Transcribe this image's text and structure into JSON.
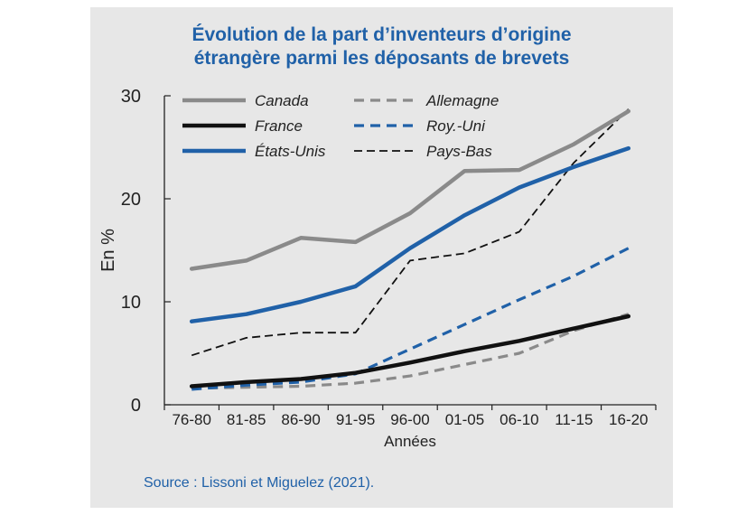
{
  "chart_data": {
    "type": "line",
    "title_lines": [
      "Évolution de la part d’inventeurs d’origine",
      "étrangère parmi les déposants de brevets"
    ],
    "xlabel": "Années",
    "ylabel": "En %",
    "categories": [
      "76-80",
      "81-85",
      "86-90",
      "91-95",
      "96-00",
      "01-05",
      "06-10",
      "11-15",
      "16-20"
    ],
    "ylim": [
      0,
      30
    ],
    "yticks": [
      0,
      10,
      20,
      30
    ],
    "grid": false,
    "legend_position": "top-left",
    "series": [
      {
        "name": "Canada",
        "values": [
          13.2,
          14.0,
          16.2,
          15.8,
          18.6,
          22.7,
          22.8,
          25.3,
          28.5
        ],
        "color": "#8a8a8a",
        "style": "solid-thick"
      },
      {
        "name": "Allemagne",
        "values": [
          1.6,
          1.7,
          1.8,
          2.1,
          2.8,
          3.9,
          5.0,
          7.2,
          8.8
        ],
        "color": "#8a8a8a",
        "style": "dashed"
      },
      {
        "name": "France",
        "values": [
          1.8,
          2.2,
          2.5,
          3.1,
          4.1,
          5.2,
          6.2,
          7.4,
          8.6
        ],
        "color": "#111111",
        "style": "solid-thick"
      },
      {
        "name": "Roy.-Uni",
        "values": [
          1.5,
          1.9,
          2.2,
          3.0,
          5.4,
          7.8,
          10.2,
          12.5,
          15.2
        ],
        "color": "#2061a8",
        "style": "dashed"
      },
      {
        "name": "États-Unis",
        "values": [
          8.1,
          8.8,
          10.0,
          11.5,
          15.2,
          18.4,
          21.1,
          23.1,
          24.9
        ],
        "color": "#2061a8",
        "style": "solid-thick"
      },
      {
        "name": "Pays-Bas",
        "values": [
          4.8,
          6.5,
          7.0,
          7.0,
          14.0,
          14.7,
          16.8,
          23.5,
          28.7
        ],
        "color": "#111111",
        "style": "dashed-thin"
      }
    ]
  },
  "source": "Source : Lissoni et Miguelez (2021)."
}
